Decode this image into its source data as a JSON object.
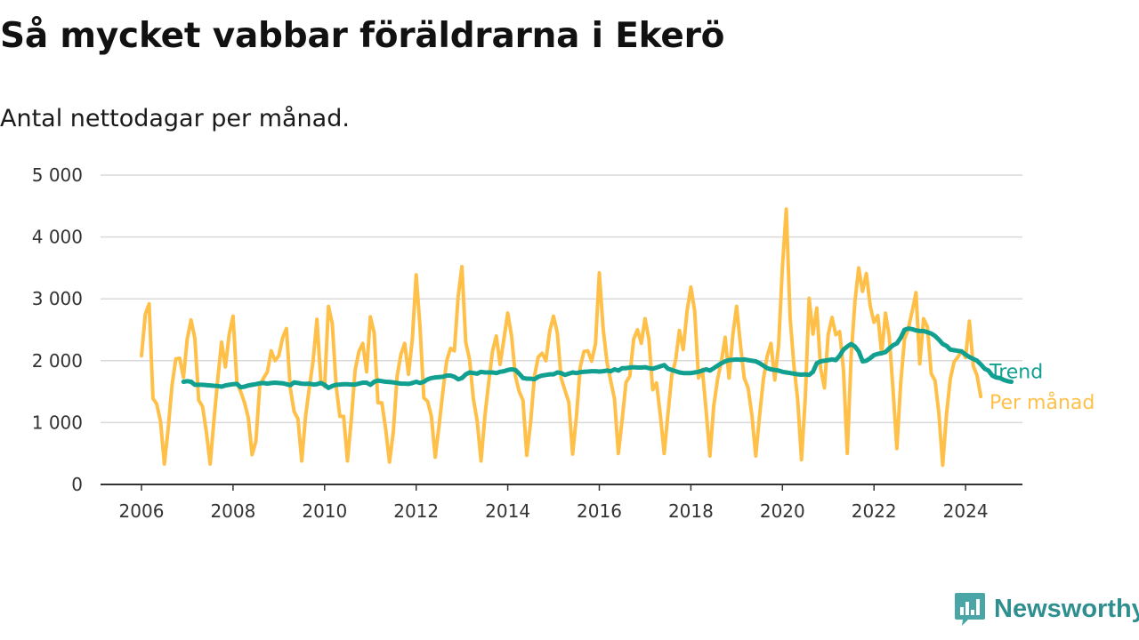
{
  "title": "Så mycket vabbar föräldrarna i Ekerö",
  "subtitle": "Antal nettodagar per månad.",
  "brand": {
    "name": "Newsworthy",
    "icon": "bar-chart-bubble-icon"
  },
  "chart_data": {
    "type": "line",
    "title": "Så mycket vabbar föräldrarna i Ekerö",
    "subtitle": "Antal nettodagar per månad.",
    "xlabel": "",
    "ylabel": "",
    "xlim": [
      2006,
      2025.2
    ],
    "ylim": [
      0,
      5000
    ],
    "x_ticks": [
      2006,
      2008,
      2010,
      2012,
      2014,
      2016,
      2018,
      2020,
      2022,
      2024
    ],
    "x_tick_labels": [
      "2006",
      "2008",
      "2010",
      "2012",
      "2014",
      "2016",
      "2018",
      "2020",
      "2022",
      "2024"
    ],
    "y_ticks": [
      0,
      1000,
      2000,
      3000,
      4000,
      5000
    ],
    "y_tick_labels": [
      "0",
      "1 000",
      "2 000",
      "3 000",
      "4 000",
      "5 000"
    ],
    "grid": true,
    "legend": "end-of-line labels",
    "series": [
      {
        "name": "Per månad",
        "color": "#ffc04a",
        "start": 2006.0,
        "step": 0.0833333,
        "values": [
          2080,
          2750,
          2920,
          1390,
          1300,
          1020,
          330,
          900,
          1600,
          2030,
          2040,
          1730,
          2350,
          2660,
          2360,
          1360,
          1260,
          850,
          330,
          1050,
          1700,
          2300,
          1900,
          2430,
          2720,
          1650,
          1500,
          1320,
          1080,
          480,
          700,
          1600,
          1720,
          1820,
          2160,
          2000,
          2080,
          2370,
          2520,
          1560,
          1180,
          1060,
          380,
          1100,
          1560,
          2000,
          2670,
          1680,
          1580,
          2880,
          2600,
          1600,
          1100,
          1100,
          380,
          1050,
          1850,
          2150,
          2280,
          1820,
          2710,
          2450,
          1320,
          1320,
          900,
          360,
          850,
          1750,
          2100,
          2280,
          1780,
          2350,
          3390,
          2550,
          1400,
          1340,
          1100,
          440,
          950,
          1500,
          2000,
          2200,
          2160,
          3040,
          3520,
          2300,
          2020,
          1380,
          1020,
          380,
          1100,
          1650,
          2150,
          2400,
          1940,
          2350,
          2770,
          2400,
          1750,
          1500,
          1360,
          470,
          1000,
          1750,
          2060,
          2120,
          2000,
          2480,
          2720,
          2450,
          1720,
          1520,
          1330,
          490,
          1100,
          1900,
          2150,
          2160,
          1990,
          2270,
          3420,
          2520,
          1980,
          1670,
          1380,
          500,
          1050,
          1650,
          1750,
          2350,
          2500,
          2280,
          2680,
          2350,
          1530,
          1640,
          1120,
          500,
          1150,
          1770,
          2000,
          2490,
          2180,
          2800,
          3190,
          2800,
          1720,
          1860,
          1200,
          460,
          1270,
          1700,
          1990,
          2380,
          1720,
          2420,
          2880,
          2260,
          1720,
          1560,
          1120,
          460,
          1110,
          1700,
          2070,
          2280,
          1690,
          2250,
          3520,
          4450,
          2700,
          1920,
          1380,
          400,
          1400,
          3010,
          2430,
          2850,
          1880,
          1560,
          2420,
          2700,
          2420,
          2470,
          1850,
          500,
          2070,
          2960,
          3500,
          3120,
          3410,
          2890,
          2620,
          2730,
          2110,
          2770,
          2400,
          1530,
          580,
          1640,
          2350,
          2520,
          2800,
          3100,
          1950,
          2680,
          2550,
          1790,
          1680,
          1150,
          310,
          1140,
          1700,
          1980,
          2060,
          2160,
          2050,
          2640,
          1920,
          1760,
          1420
        ]
      },
      {
        "name": "Trend",
        "color": "#11a090",
        "start": 2006.917,
        "step": 0.0833333,
        "values": [
          1660,
          1670,
          1660,
          1610,
          1610,
          1610,
          1605,
          1600,
          1595,
          1590,
          1580,
          1600,
          1610,
          1620,
          1625,
          1570,
          1580,
          1600,
          1610,
          1620,
          1635,
          1640,
          1630,
          1640,
          1645,
          1640,
          1635,
          1620,
          1605,
          1650,
          1640,
          1630,
          1625,
          1630,
          1615,
          1620,
          1640,
          1610,
          1560,
          1590,
          1610,
          1615,
          1620,
          1620,
          1615,
          1615,
          1630,
          1645,
          1645,
          1610,
          1660,
          1680,
          1670,
          1660,
          1655,
          1650,
          1640,
          1630,
          1630,
          1625,
          1640,
          1660,
          1640,
          1660,
          1700,
          1720,
          1730,
          1735,
          1740,
          1760,
          1760,
          1740,
          1700,
          1720,
          1780,
          1810,
          1800,
          1790,
          1820,
          1810,
          1810,
          1810,
          1800,
          1820,
          1830,
          1850,
          1860,
          1850,
          1790,
          1720,
          1710,
          1710,
          1700,
          1740,
          1760,
          1770,
          1780,
          1780,
          1810,
          1800,
          1770,
          1790,
          1810,
          1800,
          1815,
          1820,
          1825,
          1830,
          1830,
          1825,
          1830,
          1840,
          1830,
          1860,
          1840,
          1880,
          1880,
          1890,
          1895,
          1890,
          1890,
          1895,
          1880,
          1870,
          1890,
          1910,
          1930,
          1870,
          1850,
          1830,
          1810,
          1800,
          1800,
          1800,
          1810,
          1820,
          1840,
          1860,
          1840,
          1880,
          1920,
          1960,
          1990,
          2010,
          2015,
          2020,
          2015,
          2020,
          2010,
          2000,
          1990,
          1960,
          1920,
          1880,
          1860,
          1850,
          1840,
          1820,
          1810,
          1800,
          1790,
          1780,
          1775,
          1780,
          1770,
          1820,
          1960,
          1990,
          2000,
          2010,
          2020,
          2010,
          2080,
          2180,
          2230,
          2270,
          2230,
          2150,
          1990,
          2000,
          2040,
          2090,
          2110,
          2120,
          2140,
          2200,
          2250,
          2280,
          2370,
          2500,
          2520,
          2510,
          2490,
          2480,
          2480,
          2460,
          2440,
          2400,
          2340,
          2270,
          2240,
          2180,
          2170,
          2160,
          2150,
          2100,
          2060,
          2030,
          2000,
          1940,
          1870,
          1840,
          1760,
          1730,
          1720,
          1690,
          1670,
          1660
        ]
      }
    ]
  }
}
